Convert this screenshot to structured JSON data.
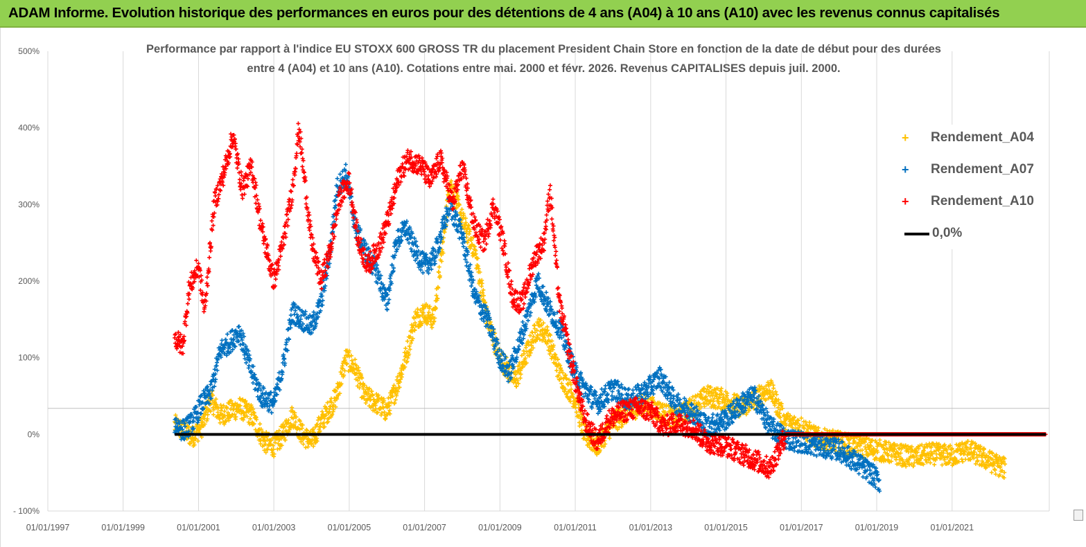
{
  "banner": {
    "title": "ADAM Informe. Evolution historique des performances en euros pour des détentions de 4 ans (A04) à 10 ans (A10) avec les revenus connus capitalisés",
    "background": "#92d050"
  },
  "chart_data": {
    "type": "scatter",
    "title": "",
    "subtitle_line1": "Performance par rapport à l'indice EU STOXX 600 GROSS TR  du placement President Chain Store  en fonction de la date de début pour des durées",
    "subtitle_line2": "entre 4 (A04) et 10 ans (A10). Cotations entre mai. 2000 et févr. 2026. Revenus CAPITALISES depuis juil. 2000.",
    "xlabel": "",
    "ylabel": "",
    "x_type": "date",
    "xlim": [
      "1997-01-01",
      "2023-08-01"
    ],
    "ylim": [
      -100,
      500
    ],
    "y_ticks": [
      -100,
      0,
      100,
      200,
      300,
      400,
      500
    ],
    "y_tick_labels": [
      "- 100%",
      "0%",
      "100%",
      "200%",
      "300%",
      "400%",
      "500%"
    ],
    "x_ticks": [
      "1997-01-01",
      "1999-01-01",
      "2001-01-01",
      "2003-01-01",
      "2005-01-01",
      "2007-01-01",
      "2009-01-01",
      "2011-01-01",
      "2013-01-01",
      "2015-01-01",
      "2017-01-01",
      "2019-01-01",
      "2021-01-01"
    ],
    "x_tick_labels": [
      "01/01/1997",
      "01/01/1999",
      "01/01/2001",
      "01/01/2003",
      "01/01/2005",
      "01/01/2007",
      "01/01/2009",
      "01/01/2011",
      "01/01/2013",
      "01/01/2015",
      "01/01/2017",
      "01/01/2019",
      "01/01/2021"
    ],
    "grid": "vertical",
    "legend_position": "top-right",
    "series": [
      {
        "name": "Rendement_A04",
        "color": "#ffc000",
        "marker": "+",
        "points": [
          [
            "2000-05-15",
            12
          ],
          [
            "2000-08-01",
            5
          ],
          [
            "2000-11-01",
            -3
          ],
          [
            "2001-02-01",
            10
          ],
          [
            "2001-05-01",
            45
          ],
          [
            "2001-08-01",
            25
          ],
          [
            "2001-11-01",
            30
          ],
          [
            "2002-02-01",
            35
          ],
          [
            "2002-06-01",
            25
          ],
          [
            "2002-10-01",
            -10
          ],
          [
            "2003-01-01",
            -15
          ],
          [
            "2003-04-01",
            0
          ],
          [
            "2003-07-01",
            25
          ],
          [
            "2003-10-01",
            0
          ],
          [
            "2004-01-01",
            -10
          ],
          [
            "2004-04-01",
            15
          ],
          [
            "2004-07-01",
            35
          ],
          [
            "2004-09-01",
            50
          ],
          [
            "2004-12-01",
            100
          ],
          [
            "2005-03-01",
            85
          ],
          [
            "2005-06-01",
            50
          ],
          [
            "2005-10-01",
            40
          ],
          [
            "2006-01-01",
            30
          ],
          [
            "2006-04-01",
            60
          ],
          [
            "2006-07-01",
            100
          ],
          [
            "2006-10-01",
            150
          ],
          [
            "2007-01-01",
            160
          ],
          [
            "2007-04-01",
            150
          ],
          [
            "2007-07-01",
            250
          ],
          [
            "2007-09-01",
            330
          ],
          [
            "2008-01-01",
            280
          ],
          [
            "2008-05-01",
            240
          ],
          [
            "2008-09-01",
            150
          ],
          [
            "2009-01-01",
            100
          ],
          [
            "2009-06-01",
            70
          ],
          [
            "2009-10-01",
            110
          ],
          [
            "2010-01-01",
            140
          ],
          [
            "2010-04-01",
            130
          ],
          [
            "2010-08-01",
            80
          ],
          [
            "2011-01-01",
            45
          ],
          [
            "2011-04-01",
            0
          ],
          [
            "2011-08-01",
            -15
          ],
          [
            "2012-01-01",
            15
          ],
          [
            "2012-06-01",
            30
          ],
          [
            "2012-11-01",
            40
          ],
          [
            "2013-04-01",
            30
          ],
          [
            "2013-09-01",
            20
          ],
          [
            "2014-02-01",
            35
          ],
          [
            "2014-07-01",
            50
          ],
          [
            "2015-01-01",
            45
          ],
          [
            "2015-06-01",
            35
          ],
          [
            "2015-10-01",
            45
          ],
          [
            "2016-03-01",
            60
          ],
          [
            "2016-08-01",
            15
          ],
          [
            "2017-01-01",
            10
          ],
          [
            "2017-06-01",
            -5
          ],
          [
            "2018-01-01",
            -10
          ],
          [
            "2018-06-01",
            -15
          ],
          [
            "2019-01-01",
            -20
          ],
          [
            "2019-06-01",
            -25
          ],
          [
            "2020-01-01",
            -30
          ],
          [
            "2020-06-01",
            -25
          ],
          [
            "2021-01-01",
            -28
          ],
          [
            "2021-06-01",
            -20
          ],
          [
            "2022-01-01",
            -35
          ],
          [
            "2022-06-01",
            -45
          ]
        ]
      },
      {
        "name": "Rendement_A07",
        "color": "#0070c0",
        "marker": "+",
        "points": [
          [
            "2000-05-15",
            15
          ],
          [
            "2000-08-01",
            5
          ],
          [
            "2000-11-01",
            15
          ],
          [
            "2001-02-01",
            40
          ],
          [
            "2001-05-01",
            55
          ],
          [
            "2001-08-01",
            110
          ],
          [
            "2001-11-01",
            120
          ],
          [
            "2002-02-01",
            135
          ],
          [
            "2002-06-01",
            80
          ],
          [
            "2002-09-01",
            50
          ],
          [
            "2003-01-01",
            40
          ],
          [
            "2003-04-01",
            90
          ],
          [
            "2003-07-01",
            160
          ],
          [
            "2003-10-01",
            150
          ],
          [
            "2004-01-01",
            140
          ],
          [
            "2004-04-01",
            170
          ],
          [
            "2004-07-01",
            240
          ],
          [
            "2004-09-01",
            320
          ],
          [
            "2004-12-01",
            340
          ],
          [
            "2005-03-01",
            270
          ],
          [
            "2005-06-01",
            240
          ],
          [
            "2005-10-01",
            210
          ],
          [
            "2006-01-01",
            170
          ],
          [
            "2006-04-01",
            250
          ],
          [
            "2006-07-01",
            270
          ],
          [
            "2006-10-01",
            240
          ],
          [
            "2007-01-01",
            220
          ],
          [
            "2007-04-01",
            230
          ],
          [
            "2007-07-01",
            270
          ],
          [
            "2007-09-01",
            300
          ],
          [
            "2008-01-01",
            260
          ],
          [
            "2008-05-01",
            180
          ],
          [
            "2008-09-01",
            150
          ],
          [
            "2009-01-01",
            100
          ],
          [
            "2009-04-01",
            80
          ],
          [
            "2009-08-01",
            130
          ],
          [
            "2010-01-01",
            200
          ],
          [
            "2010-04-01",
            170
          ],
          [
            "2010-08-01",
            140
          ],
          [
            "2011-01-01",
            80
          ],
          [
            "2011-04-01",
            60
          ],
          [
            "2011-08-01",
            40
          ],
          [
            "2012-01-01",
            60
          ],
          [
            "2012-06-01",
            45
          ],
          [
            "2012-11-01",
            55
          ],
          [
            "2013-04-01",
            75
          ],
          [
            "2013-09-01",
            40
          ],
          [
            "2014-02-01",
            30
          ],
          [
            "2014-07-01",
            10
          ],
          [
            "2015-01-01",
            20
          ],
          [
            "2015-06-01",
            40
          ],
          [
            "2015-10-01",
            50
          ],
          [
            "2016-03-01",
            10
          ],
          [
            "2016-08-01",
            -5
          ],
          [
            "2017-01-01",
            -10
          ],
          [
            "2017-06-01",
            -15
          ],
          [
            "2018-01-01",
            -20
          ],
          [
            "2018-06-01",
            -35
          ],
          [
            "2018-11-01",
            -50
          ],
          [
            "2019-02-01",
            -62
          ]
        ]
      },
      {
        "name": "Rendement_A10",
        "color": "#ff0000",
        "marker": "+",
        "points": [
          [
            "2000-05-15",
            125
          ],
          [
            "2000-08-01",
            115
          ],
          [
            "2000-10-01",
            190
          ],
          [
            "2001-01-01",
            220
          ],
          [
            "2001-03-01",
            160
          ],
          [
            "2001-06-01",
            300
          ],
          [
            "2001-09-01",
            340
          ],
          [
            "2001-12-01",
            390
          ],
          [
            "2002-03-01",
            320
          ],
          [
            "2002-06-01",
            350
          ],
          [
            "2002-09-01",
            270
          ],
          [
            "2003-01-01",
            200
          ],
          [
            "2003-04-01",
            250
          ],
          [
            "2003-07-01",
            320
          ],
          [
            "2003-09-01",
            400
          ],
          [
            "2004-01-01",
            250
          ],
          [
            "2004-04-01",
            200
          ],
          [
            "2004-07-01",
            240
          ],
          [
            "2004-10-01",
            310
          ],
          [
            "2005-01-01",
            330
          ],
          [
            "2005-04-01",
            250
          ],
          [
            "2005-07-01",
            220
          ],
          [
            "2005-11-01",
            250
          ],
          [
            "2006-02-01",
            290
          ],
          [
            "2006-05-01",
            340
          ],
          [
            "2006-08-01",
            360
          ],
          [
            "2006-12-01",
            350
          ],
          [
            "2007-03-01",
            330
          ],
          [
            "2007-06-01",
            360
          ],
          [
            "2007-10-01",
            300
          ],
          [
            "2008-01-01",
            350
          ],
          [
            "2008-05-01",
            270
          ],
          [
            "2008-08-01",
            250
          ],
          [
            "2008-11-01",
            300
          ],
          [
            "2009-02-01",
            250
          ],
          [
            "2009-05-01",
            180
          ],
          [
            "2009-08-01",
            170
          ],
          [
            "2009-12-01",
            230
          ],
          [
            "2010-03-01",
            250
          ],
          [
            "2010-05-01",
            320
          ],
          [
            "2010-08-01",
            170
          ],
          [
            "2011-01-01",
            70
          ],
          [
            "2011-04-01",
            20
          ],
          [
            "2011-08-01",
            -10
          ],
          [
            "2011-12-01",
            20
          ],
          [
            "2012-04-01",
            30
          ],
          [
            "2012-09-01",
            35
          ],
          [
            "2013-01-01",
            30
          ],
          [
            "2013-05-01",
            10
          ],
          [
            "2013-09-01",
            15
          ],
          [
            "2014-02-01",
            10
          ],
          [
            "2014-07-01",
            -10
          ],
          [
            "2015-01-01",
            -15
          ],
          [
            "2015-06-01",
            -25
          ],
          [
            "2015-11-01",
            -35
          ],
          [
            "2016-03-01",
            -45
          ],
          [
            "2016-08-01",
            0
          ],
          [
            "2023-07-01",
            0
          ]
        ]
      },
      {
        "name": "0,0%",
        "color": "#000000",
        "marker": "line",
        "points": [
          [
            "2000-05-15",
            0
          ],
          [
            "2023-07-01",
            0
          ]
        ]
      }
    ]
  }
}
